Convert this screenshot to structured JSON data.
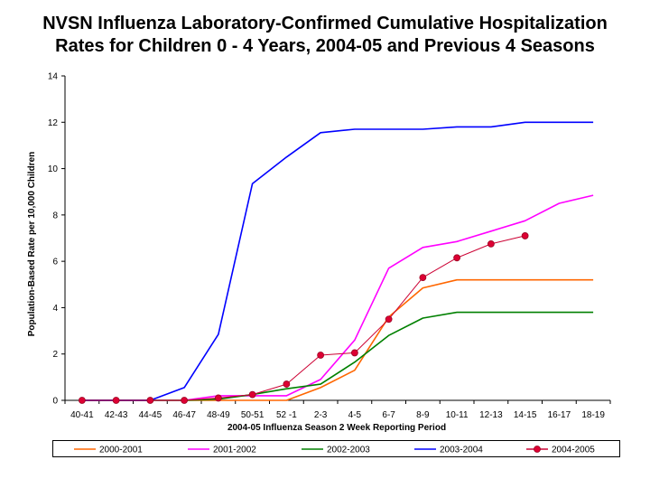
{
  "chart_data": {
    "type": "line",
    "title_lines": [
      "NVSN Influenza Laboratory-Confirmed Cumulative Hospitalization",
      "Rates for Children 0 - 4 Years, 2004-05 and Previous 4 Seasons"
    ],
    "xlabel": "2004-05 Influenza Season 2 Week Reporting Period",
    "ylabel": "Population-Based Rate per 10,000 Children",
    "categories": [
      "40-41",
      "42-43",
      "44-45",
      "46-47",
      "48-49",
      "50-51",
      "52 -1",
      "2-3",
      "4-5",
      "6-7",
      "8-9",
      "10-11",
      "12-13",
      "14-15",
      "16-17",
      "18-19"
    ],
    "ylim": [
      0,
      14
    ],
    "yticks": [
      0,
      2,
      4,
      6,
      8,
      10,
      12,
      14
    ],
    "grid": false,
    "legend_position": "bottom",
    "series": [
      {
        "name": "2000-2001",
        "color": "#ff6600",
        "marker": false,
        "values": [
          0,
          0,
          0,
          0,
          0,
          0,
          0,
          0.55,
          1.3,
          3.6,
          4.85,
          5.2,
          5.2,
          5.2,
          5.2,
          5.2
        ]
      },
      {
        "name": "2001-2002",
        "color": "#ff00ff",
        "marker": false,
        "values": [
          0,
          0,
          0,
          0,
          0.2,
          0.2,
          0.2,
          0.9,
          2.6,
          5.7,
          6.6,
          6.85,
          7.3,
          7.75,
          8.5,
          8.85
        ]
      },
      {
        "name": "2002-2003",
        "color": "#008000",
        "marker": false,
        "values": [
          0,
          0,
          0,
          0,
          0.05,
          0.25,
          0.5,
          0.7,
          1.65,
          2.8,
          3.55,
          3.8,
          3.8,
          3.8,
          3.8,
          3.8
        ]
      },
      {
        "name": "2003-2004",
        "color": "#0000ff",
        "marker": false,
        "values": [
          0,
          0,
          0,
          0.55,
          2.85,
          9.35,
          10.5,
          11.55,
          11.7,
          11.7,
          11.7,
          11.8,
          11.8,
          12.0,
          12.0,
          12.0
        ]
      },
      {
        "name": "2004-2005",
        "color": "#cc0033",
        "marker": true,
        "values": [
          0,
          0,
          0,
          0,
          0.1,
          0.25,
          0.7,
          1.95,
          2.05,
          3.5,
          5.3,
          6.15,
          6.75,
          7.1,
          null,
          null
        ]
      }
    ]
  }
}
